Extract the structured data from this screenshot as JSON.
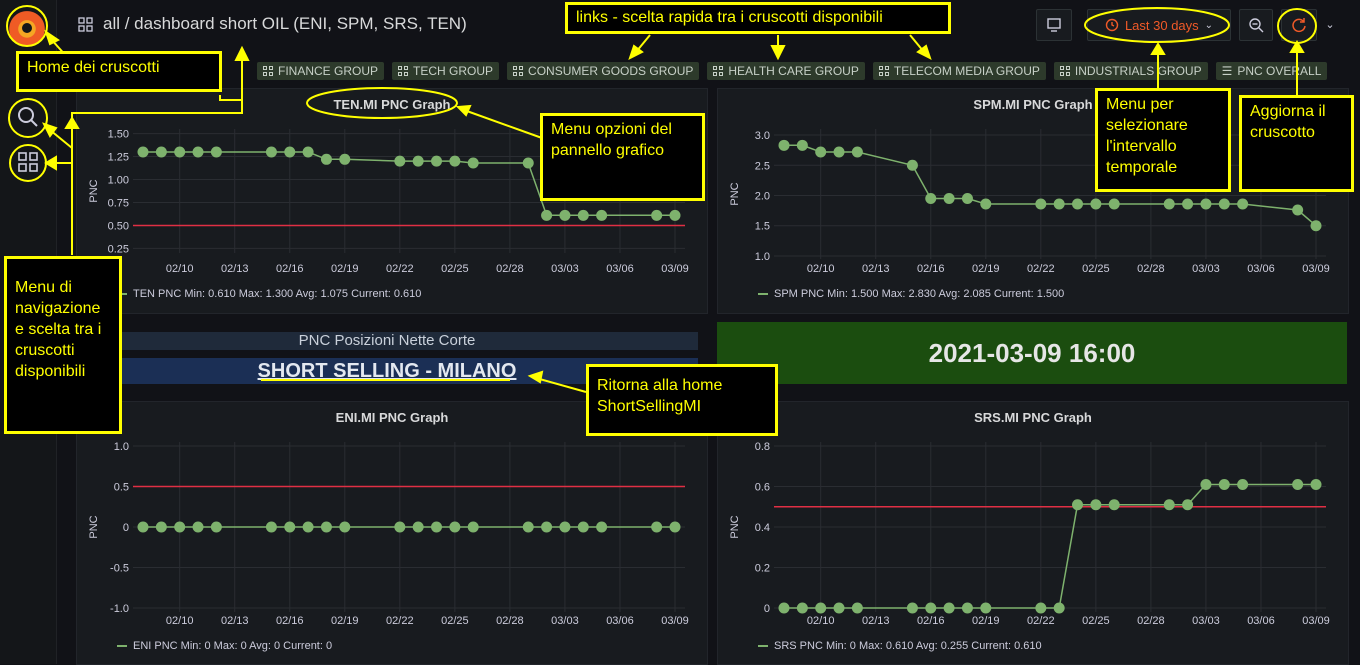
{
  "header": {
    "breadcrumb": "all / dashboard short OIL (ENI, SPM, SRS, TEN)",
    "time_range": "Last 30 days"
  },
  "links": [
    "FINANCE GROUP",
    "TECH GROUP",
    "CONSUMER GOODS GROUP",
    "HEALTH CARE GROUP",
    "TELECOM MEDIA GROUP",
    "INDUSTRIALS GROUP",
    "PNC OVERALL"
  ],
  "colors": {
    "series": "#7eb26d",
    "threshold": "#e02f44",
    "accent": "#ffff00",
    "time": "#f05a28"
  },
  "panels": {
    "ten": {
      "title": "TEN.MI PNC Graph",
      "legend": "TEN PNC  Min: 0.610  Max: 1.300  Avg: 1.075  Current: 0.610"
    },
    "spm": {
      "title": "SPM.MI PNC Graph",
      "legend": "SPM PNC  Min: 1.500  Max: 2.830  Avg: 2.085  Current: 1.500"
    },
    "eni": {
      "title": "ENI.MI PNC Graph",
      "legend": "ENI PNC  Min: 0  Max: 0  Avg: 0  Current: 0"
    },
    "srs": {
      "title": "SRS.MI PNC Graph",
      "legend": "SRS PNC  Min: 0  Max: 0.610  Avg: 0.255  Current: 0.610"
    }
  },
  "text_panel": {
    "heading": "PNC Posizioni Nette Corte",
    "link": "SHORT SELLING - MILANO"
  },
  "date_panel": "2021-03-09 16:00",
  "annotations": {
    "home": "Home dei cruscotti",
    "links": "links - scelta rapida tra i cruscotti disponibili",
    "nav": "Menu di navigazione e scelta tra i cruscotti disponibili",
    "panel_menu": "Menu opzioni del pannello grafico",
    "interval": "Menu per selezionare l'intervallo temporale",
    "refresh": "Aggiorna il cruscotto",
    "return_home": "Ritorna alla home ShortSellingMI"
  },
  "chart_data": [
    {
      "type": "line",
      "title": "TEN.MI PNC Graph",
      "ylabel": "PNC",
      "x_ticks": [
        "02/10",
        "02/13",
        "02/16",
        "02/19",
        "02/22",
        "02/25",
        "02/28",
        "03/03",
        "03/06",
        "03/09"
      ],
      "yticks": [
        0.25,
        0.5,
        0.75,
        1.0,
        1.25,
        1.5
      ],
      "ylim": [
        0.2,
        1.55
      ],
      "threshold": 0.5,
      "series": [
        {
          "name": "TEN PNC",
          "x": [
            "02/08",
            "02/09",
            "02/10",
            "02/11",
            "02/12",
            "02/15",
            "02/16",
            "02/17",
            "02/18",
            "02/19",
            "02/22",
            "02/23",
            "02/24",
            "02/25",
            "02/26",
            "03/01",
            "03/02",
            "03/03",
            "03/04",
            "03/05",
            "03/08",
            "03/09"
          ],
          "values": [
            1.3,
            1.3,
            1.3,
            1.3,
            1.3,
            1.3,
            1.3,
            1.3,
            1.22,
            1.22,
            1.2,
            1.2,
            1.2,
            1.2,
            1.18,
            1.18,
            0.61,
            0.61,
            0.61,
            0.61,
            0.61,
            0.61
          ]
        }
      ]
    },
    {
      "type": "line",
      "title": "SPM.MI PNC Graph",
      "ylabel": "PNC",
      "x_ticks": [
        "02/10",
        "02/13",
        "02/16",
        "02/19",
        "02/22",
        "02/25",
        "02/28",
        "03/03",
        "03/06",
        "03/09"
      ],
      "yticks": [
        1.0,
        1.5,
        2.0,
        2.5,
        3.0
      ],
      "ylim": [
        0.95,
        3.1
      ],
      "threshold": null,
      "series": [
        {
          "name": "SPM PNC",
          "x": [
            "02/08",
            "02/09",
            "02/10",
            "02/11",
            "02/12",
            "02/15",
            "02/16",
            "02/17",
            "02/18",
            "02/19",
            "02/22",
            "02/23",
            "02/24",
            "02/25",
            "02/26",
            "03/01",
            "03/02",
            "03/03",
            "03/04",
            "03/05",
            "03/08",
            "03/09"
          ],
          "values": [
            2.83,
            2.83,
            2.72,
            2.72,
            2.72,
            2.5,
            1.95,
            1.95,
            1.95,
            1.86,
            1.86,
            1.86,
            1.86,
            1.86,
            1.86,
            1.86,
            1.86,
            1.86,
            1.86,
            1.86,
            1.76,
            1.5
          ]
        }
      ]
    },
    {
      "type": "line",
      "title": "ENI.MI PNC Graph",
      "ylabel": "PNC",
      "x_ticks": [
        "02/10",
        "02/13",
        "02/16",
        "02/19",
        "02/22",
        "02/25",
        "02/28",
        "03/03",
        "03/06",
        "03/09"
      ],
      "yticks": [
        -1.0,
        -0.5,
        0,
        0.5,
        1.0
      ],
      "ylim": [
        -1.05,
        1.05
      ],
      "threshold": 0.5,
      "series": [
        {
          "name": "ENI PNC",
          "x": [
            "02/08",
            "02/09",
            "02/10",
            "02/11",
            "02/12",
            "02/15",
            "02/16",
            "02/17",
            "02/18",
            "02/19",
            "02/22",
            "02/23",
            "02/24",
            "02/25",
            "02/26",
            "03/01",
            "03/02",
            "03/03",
            "03/04",
            "03/05",
            "03/08",
            "03/09"
          ],
          "values": [
            0,
            0,
            0,
            0,
            0,
            0,
            0,
            0,
            0,
            0,
            0,
            0,
            0,
            0,
            0,
            0,
            0,
            0,
            0,
            0,
            0,
            0
          ]
        }
      ]
    },
    {
      "type": "line",
      "title": "SRS.MI PNC Graph",
      "ylabel": "PNC",
      "x_ticks": [
        "02/10",
        "02/13",
        "02/16",
        "02/19",
        "02/22",
        "02/25",
        "02/28",
        "03/03",
        "03/06",
        "03/09"
      ],
      "yticks": [
        0,
        0.2,
        0.4,
        0.6,
        0.8
      ],
      "ylim": [
        -0.02,
        0.82
      ],
      "threshold": 0.5,
      "series": [
        {
          "name": "SRS PNC",
          "x": [
            "02/08",
            "02/09",
            "02/10",
            "02/11",
            "02/12",
            "02/15",
            "02/16",
            "02/17",
            "02/18",
            "02/19",
            "02/22",
            "02/23",
            "02/24",
            "02/25",
            "02/26",
            "03/01",
            "03/02",
            "03/03",
            "03/04",
            "03/05",
            "03/08",
            "03/09"
          ],
          "values": [
            0,
            0,
            0,
            0,
            0,
            0,
            0,
            0,
            0,
            0,
            0,
            0,
            0.51,
            0.51,
            0.51,
            0.51,
            0.51,
            0.61,
            0.61,
            0.61,
            0.61,
            0.61
          ]
        }
      ]
    }
  ]
}
